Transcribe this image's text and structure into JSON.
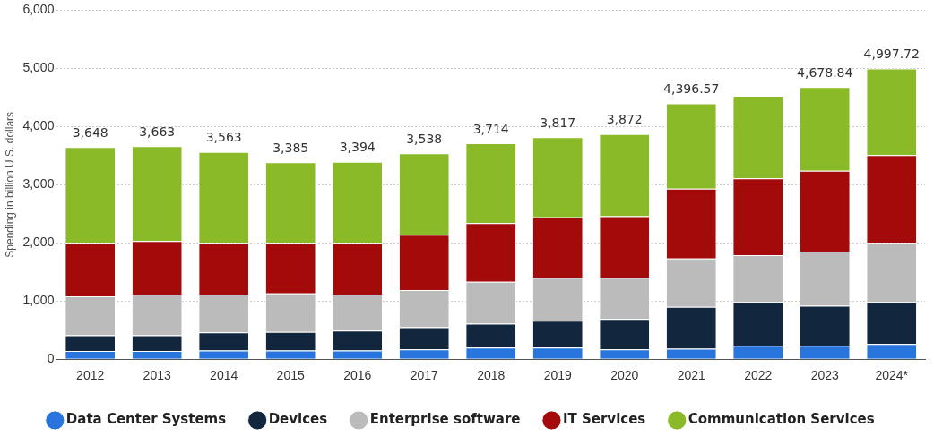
{
  "chart_data": {
    "type": "bar",
    "stacked": true,
    "ylabel": "Spending in billion U.S. dollars",
    "categories": [
      "2012",
      "2013",
      "2014",
      "2015",
      "2016",
      "2017",
      "2018",
      "2019",
      "2020",
      "2021",
      "2022",
      "2023",
      "2024*"
    ],
    "series": [
      {
        "name": "Data Center Systems",
        "color": "#2876dd",
        "values": [
          140,
          140,
          150,
          150,
          150,
          170,
          200,
          200,
          170,
          180,
          230,
          230,
          260
        ]
      },
      {
        "name": "Devices",
        "color": "#12263e",
        "values": [
          270,
          270,
          310,
          320,
          340,
          380,
          410,
          460,
          520,
          720,
          750,
          690,
          720
        ]
      },
      {
        "name": "Enterprise software",
        "color": "#bbbbbb",
        "values": [
          670,
          700,
          650,
          660,
          620,
          640,
          720,
          740,
          710,
          830,
          810,
          930,
          1020
        ]
      },
      {
        "name": "IT Services",
        "color": "#a30b0b",
        "values": [
          920,
          920,
          890,
          870,
          890,
          950,
          1010,
          1040,
          1060,
          1200,
          1320,
          1390,
          1510
        ]
      },
      {
        "name": "Communication Services",
        "color": "#8aba27",
        "values": [
          1648,
          1633,
          1563,
          1385,
          1394,
          1398,
          1374,
          1377,
          1412,
          1466.57,
          1420,
          1438.84,
          1487.72
        ]
      }
    ],
    "totals": [
      "3,648",
      "3,663",
      "3,563",
      "3,385",
      "3,394",
      "3,538",
      "3,714",
      "3,817",
      "3,872",
      "4,396.57",
      null,
      "4,678.84",
      "4,997.72"
    ],
    "ylim": [
      0,
      6000
    ],
    "yticks": [
      {
        "value": 0,
        "label": "0"
      },
      {
        "value": 1000,
        "label": "1,000"
      },
      {
        "value": 2000,
        "label": "2,000"
      },
      {
        "value": 3000,
        "label": "3,000"
      },
      {
        "value": 4000,
        "label": "4,000"
      },
      {
        "value": 5000,
        "label": "5,000"
      },
      {
        "value": 6000,
        "label": "6,000"
      }
    ],
    "grid": "y",
    "legend": "bottom"
  }
}
